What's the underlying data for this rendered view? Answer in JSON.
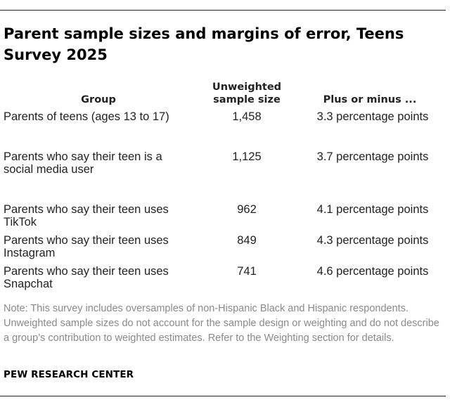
{
  "title": "Parent sample sizes and margins of error, Teens Survey 2025",
  "table": {
    "headers": {
      "group": "Group",
      "sample_size": "Unweighted sample size",
      "margin": "Plus or minus ..."
    },
    "rows": [
      {
        "group": "Parents of teens (ages 13 to 17)",
        "sample_size": "1,458",
        "margin": "3.3 percentage points"
      },
      {
        "group": "Parents who say their teen is a social media user",
        "sample_size": "1,125",
        "margin": "3.7 percentage points"
      },
      {
        "group": "Parents who say their teen uses TikTok",
        "sample_size": "962",
        "margin": "4.1 percentage points"
      },
      {
        "group": "Parents who say their teen uses Instagram",
        "sample_size": "849",
        "margin": "4.3 percentage points"
      },
      {
        "group": "Parents who say their teen uses Snapchat",
        "sample_size": "741",
        "margin": "4.6 percentage points"
      }
    ]
  },
  "note": "Note: This survey includes oversamples of non-Hispanic Black and Hispanic respondents. Unweighted sample sizes do not account for the sample design or weighting and do not describe a group’s contribution to weighted estimates. Refer to the Weighting section for details.",
  "source": "PEW RESEARCH CENTER"
}
